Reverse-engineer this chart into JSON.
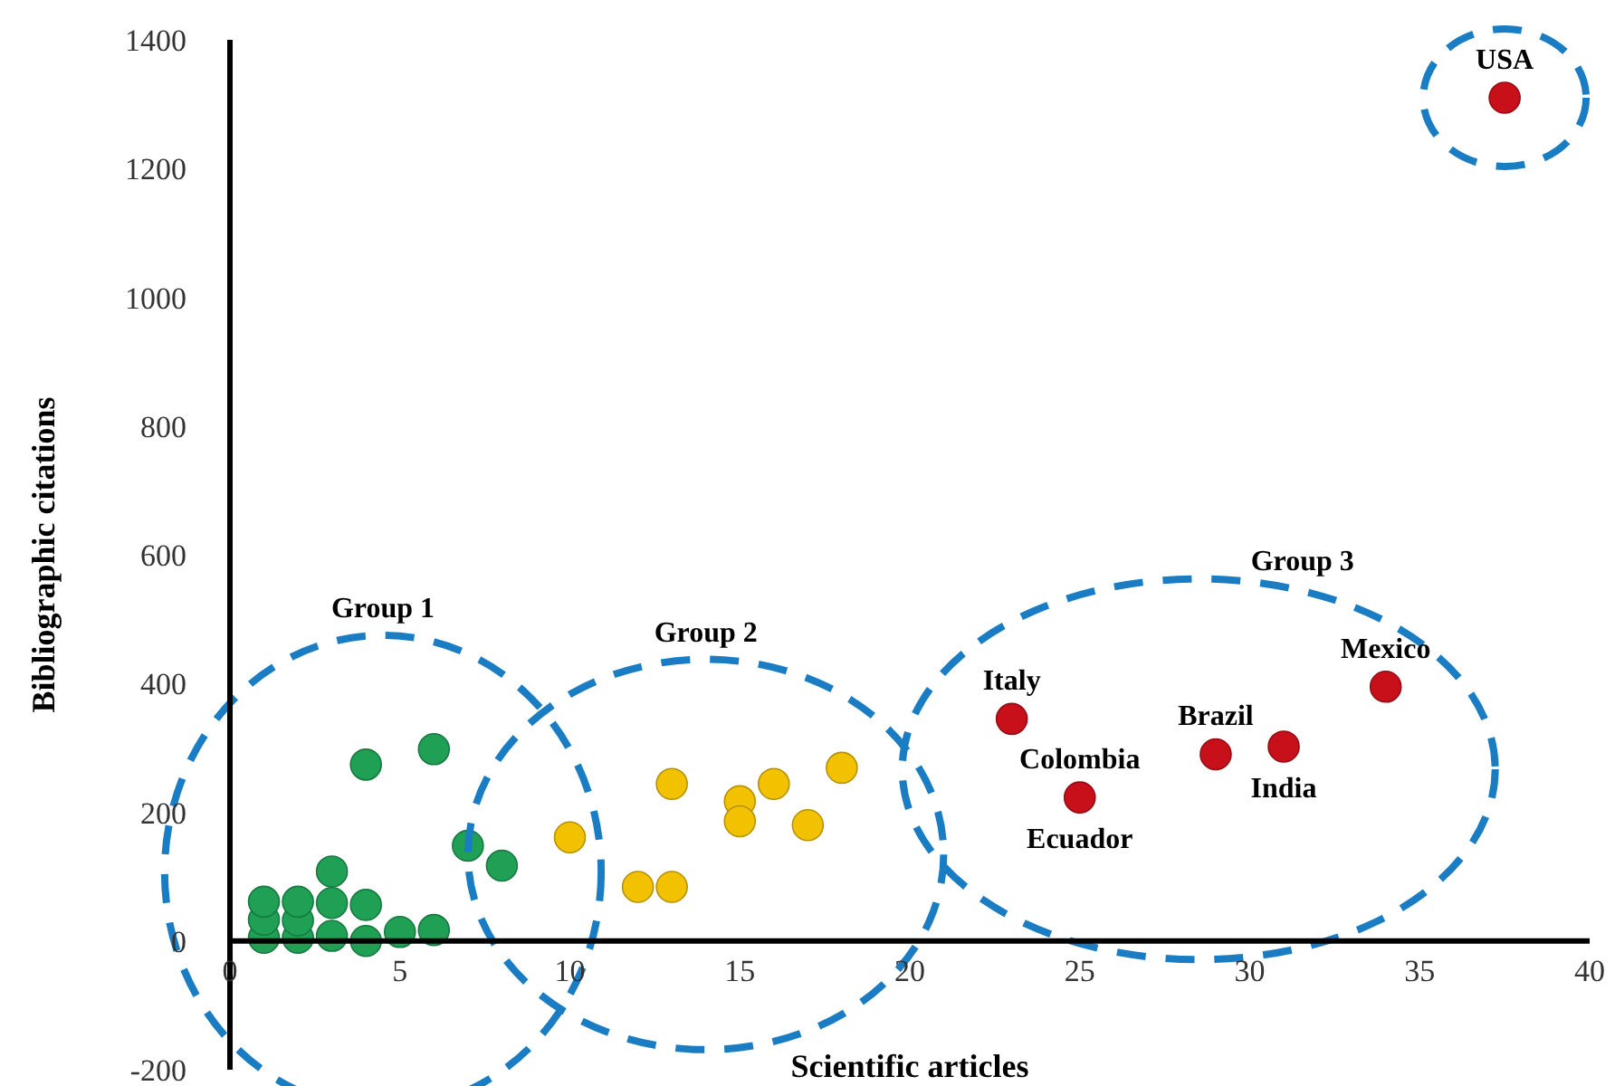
{
  "chart_data": {
    "type": "scatter",
    "xlabel": "Scientific articles",
    "ylabel": "Bibliographic citations",
    "xlim": [
      0,
      40
    ],
    "ylim": [
      -200,
      1400
    ],
    "xticks": [
      0,
      5,
      10,
      15,
      20,
      25,
      30,
      35,
      40
    ],
    "yticks": [
      -200,
      0,
      200,
      400,
      600,
      800,
      1000,
      1200,
      1400
    ],
    "grid": false,
    "marker": "circle",
    "series": [
      {
        "color": "#1fa055",
        "x": [
          1,
          1,
          1,
          2,
          2,
          2,
          3,
          3,
          3,
          4,
          4,
          4,
          5,
          6,
          6,
          7,
          8
        ],
        "values": [
          5,
          33,
          61,
          5,
          32,
          61,
          8,
          59,
          108,
          0,
          56,
          274,
          14,
          17,
          298,
          148,
          117
        ]
      },
      {
        "color": "#f2c200",
        "x": [
          10,
          12,
          13,
          13,
          15,
          15,
          16,
          17,
          18
        ],
        "values": [
          161,
          84,
          84,
          244,
          217,
          186,
          244,
          180,
          269
        ]
      },
      {
        "color": "#c8101a",
        "x": [
          23,
          25,
          29,
          31,
          34
        ],
        "values": [
          345,
          223,
          290,
          302,
          395
        ]
      },
      {
        "color": "#c8101a",
        "x": [
          37.5
        ],
        "values": [
          1310
        ]
      }
    ],
    "annotations": [
      "Group 1",
      "Group 2",
      "Group 3",
      {
        "text": "USA",
        "x": 37.5,
        "y": 1310
      },
      {
        "text": "Italy",
        "x": 23,
        "y": 345
      },
      {
        "text": "Colombia",
        "x": 25,
        "y": 223
      },
      {
        "text": "Ecuador",
        "x": 25,
        "y": 223
      },
      {
        "text": "Brazil",
        "x": 29,
        "y": 290
      },
      {
        "text": "India",
        "x": 31,
        "y": 302
      },
      {
        "text": "Mexico",
        "x": 34,
        "y": 395
      }
    ]
  }
}
